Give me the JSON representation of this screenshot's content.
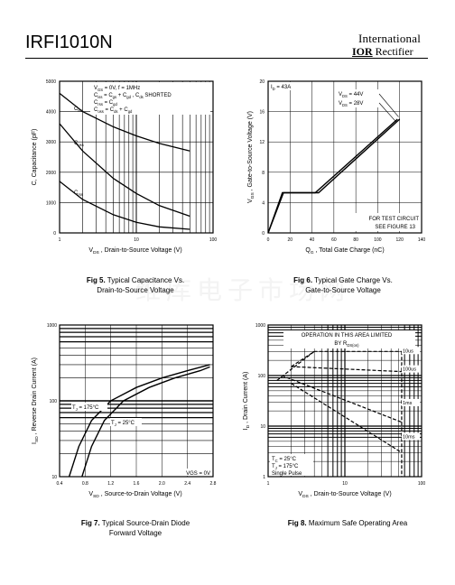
{
  "header": {
    "part_number": "IRFI1010N",
    "brand_line1": "International",
    "brand_ior": "IOR",
    "brand_rectifier": "Rectifier"
  },
  "watermark": "维库电子市场网",
  "fig5": {
    "caption_num": "Fig 5.",
    "caption_line1": "Typical Capacitance Vs.",
    "caption_line2": "Drain-to-Source Voltage",
    "ylabel": "C, Capacitance (pF)",
    "xlabel": "V DS , Drain-to-Source Voltage (V)",
    "cond1": "V GS = 0V,     f = 1MHz",
    "cond2": "C iss = C gs + C gd , C ds SHORTED",
    "cond3": "C rss = C gd",
    "cond4": "C oss = C ds + C gd",
    "labels": [
      "C iss",
      "C oss",
      "C rss"
    ]
  },
  "fig6": {
    "caption_num": "Fig 6.",
    "caption_line1": "Typical Gate Charge Vs.",
    "caption_line2": "Gate-to-Source Voltage",
    "ylabel": "V GS , Gate-to-Source Voltage (V)",
    "xlabel": "Q G , Total Gate Charge (nC)",
    "id_label": "I D = 43A",
    "v1": "V DS = 44V",
    "v2": "V DS = 28V",
    "note1": "FOR TEST CIRCUIT",
    "note2": "SEE FIGURE 13"
  },
  "fig7": {
    "caption_num": "Fig 7.",
    "caption_line1": "Typical Source-Drain Diode",
    "caption_line2": "Forward Voltage",
    "ylabel": "I SD , Reverse Drain Current (A)",
    "xlabel": "V SD , Source-to-Drain Voltage (V)",
    "t1": "T J = 175°C",
    "t2": "T J = 25°C",
    "vgs": "VGS = 0V"
  },
  "fig8": {
    "caption_num": "Fig 8.",
    "caption_line1": "Maximum Safe Operating Area",
    "ylabel": "I D , Drain Current (A)",
    "xlabel": "V DS , Drain-to-Source Voltage (V)",
    "op1": "OPERATION IN THIS AREA LIMITED",
    "op2": "BY R DS(on)",
    "tc": "T C = 25°C",
    "tj": "T J = 175°C",
    "sp": "Single Pulse",
    "pulses": [
      "10us",
      "100us",
      "1ms",
      "10ms"
    ]
  },
  "chart_data": [
    {
      "type": "line",
      "title": "Fig 5. Typical Capacitance Vs. Drain-to-Source Voltage",
      "xlabel": "V DS , Drain-to-Source Voltage (V)",
      "ylabel": "C, Capacitance (pF)",
      "xscale": "log",
      "xlim": [
        1,
        100
      ],
      "ylim": [
        0,
        5000
      ],
      "xticks": [
        "1",
        "10",
        "100"
      ],
      "yticks": [
        "0",
        "1000",
        "2000",
        "3000",
        "4000",
        "5000"
      ],
      "series": [
        {
          "name": "C iss",
          "x": [
            1,
            2,
            5,
            10,
            20,
            50
          ],
          "values": [
            4600,
            4000,
            3500,
            3200,
            2950,
            2700
          ]
        },
        {
          "name": "C oss",
          "x": [
            1,
            2,
            5,
            10,
            20,
            50
          ],
          "values": [
            3600,
            2700,
            1800,
            1300,
            900,
            550
          ]
        },
        {
          "name": "C rss",
          "x": [
            1,
            2,
            5,
            10,
            20,
            50
          ],
          "values": [
            1700,
            1100,
            600,
            350,
            200,
            120
          ]
        }
      ]
    },
    {
      "type": "line",
      "title": "Fig 6. Typical Gate Charge Vs. Gate-to-Source Voltage",
      "xlabel": "Q G , Total Gate Charge (nC)",
      "ylabel": "V GS , Gate-to-Source Voltage (V)",
      "xlim": [
        0,
        140
      ],
      "ylim": [
        0,
        20
      ],
      "xticks": [
        "0",
        "20",
        "40",
        "60",
        "80",
        "100",
        "120",
        "140"
      ],
      "yticks": [
        "0",
        "4",
        "8",
        "12",
        "16",
        "20"
      ],
      "series": [
        {
          "name": "V DS = 44V",
          "x": [
            0,
            14,
            46,
            120
          ],
          "values": [
            0,
            5.3,
            5.3,
            15
          ]
        },
        {
          "name": "V DS = 28V",
          "x": [
            0,
            13,
            43,
            118
          ],
          "values": [
            0,
            5.3,
            5.3,
            15
          ]
        }
      ]
    },
    {
      "type": "line",
      "title": "Fig 7. Typical Source-Drain Diode Forward Voltage",
      "xlabel": "V SD , Source-to-Drain Voltage (V)",
      "ylabel": "I SD , Reverse Drain Current (A)",
      "yscale": "log",
      "xlim": [
        0.4,
        2.8
      ],
      "ylim": [
        10,
        1000
      ],
      "xticks": [
        "0.4",
        "0.8",
        "1.2",
        "1.6",
        "2.0",
        "2.4",
        "2.8"
      ],
      "yticks": [
        "10",
        "100",
        "1000"
      ],
      "series": [
        {
          "name": "T J = 175°C",
          "x": [
            0.55,
            0.7,
            0.9,
            1.2,
            1.6,
            2.0,
            2.4,
            2.75
          ],
          "values": [
            10,
            25,
            55,
            100,
            150,
            200,
            250,
            300
          ]
        },
        {
          "name": "T J = 25°C",
          "x": [
            0.75,
            0.9,
            1.1,
            1.4,
            1.8,
            2.2,
            2.6,
            2.75
          ],
          "values": [
            10,
            25,
            55,
            100,
            150,
            200,
            250,
            280
          ]
        }
      ]
    },
    {
      "type": "line",
      "title": "Fig 8. Maximum Safe Operating Area",
      "xlabel": "V DS , Drain-to-Source Voltage (V)",
      "ylabel": "I D , Drain Current (A)",
      "xscale": "log",
      "yscale": "log",
      "xlim": [
        1,
        100
      ],
      "ylim": [
        1,
        1000
      ],
      "xticks": [
        "1",
        "10",
        "100"
      ],
      "yticks": [
        "1",
        "10",
        "100",
        "1000"
      ],
      "series": [
        {
          "name": "10us",
          "x": [
            2,
            4,
            55
          ],
          "values": [
            150,
            300,
            300
          ]
        },
        {
          "name": "100us",
          "x": [
            2,
            55
          ],
          "values": [
            150,
            120
          ]
        },
        {
          "name": "1ms",
          "x": [
            1.5,
            55
          ],
          "values": [
            100,
            12
          ]
        },
        {
          "name": "10ms",
          "x": [
            2,
            55
          ],
          "values": [
            70,
            3
          ]
        }
      ]
    }
  ]
}
